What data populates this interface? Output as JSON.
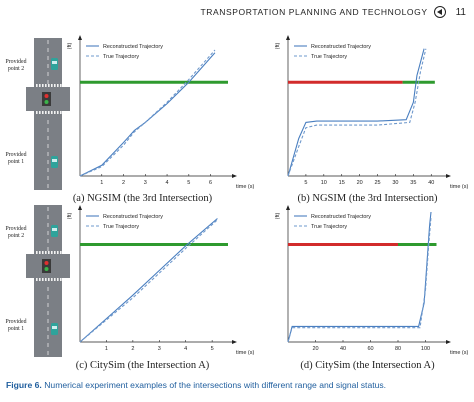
{
  "header": {
    "running_title": "TRANSPORTATION PLANNING AND TECHNOLOGY",
    "logo_icon": "journal-logo-icon",
    "page_number": "11"
  },
  "colors": {
    "reconstructed": "#4a7fc0",
    "true": "#6e98cc",
    "green_signal": "#2e9a2e",
    "red_signal": "#d22b2b",
    "caption_blue": "#1f5e9e"
  },
  "intersection_labels": {
    "point2": [
      "Provided",
      "point 2"
    ],
    "point1": [
      "Provided",
      "point 1"
    ]
  },
  "panels": [
    {
      "id": "a",
      "caption": "(a) NGSIM (the 3rd Intersection)",
      "chart_data": {
        "type": "line",
        "xlabel": "time (s)",
        "ylabel": "(ft)",
        "x_ticks": [
          1,
          2,
          3,
          4,
          5,
          6
        ],
        "xlim": [
          0,
          6.8
        ],
        "ylim": [
          0,
          100
        ],
        "series": [
          {
            "name": "Reconstructed Trajectory",
            "style": "solid",
            "x": [
              0,
              1,
              2,
              2.5,
              3,
              4,
              5,
              6.2
            ],
            "y": [
              0,
              8,
              25,
              34,
              40,
              54,
              70,
              92
            ]
          },
          {
            "name": "True Trajectory",
            "style": "dashed",
            "x": [
              0,
              1,
              2,
              2.5,
              3,
              4,
              5,
              6.2
            ],
            "y": [
              0,
              7,
              23,
              33,
              40,
              55,
              72,
              94
            ]
          }
        ],
        "signal": [
          {
            "color": "green",
            "x0": 0,
            "x1": 6.8,
            "y": 70
          }
        ]
      }
    },
    {
      "id": "b",
      "caption": "(b) NGSIM (the 3rd Intersection)",
      "chart_data": {
        "type": "line",
        "xlabel": "time (s)",
        "ylabel": "(ft)",
        "x_ticks": [
          5,
          10,
          15,
          20,
          25,
          30,
          35,
          40
        ],
        "xlim": [
          0,
          43
        ],
        "ylim": [
          0,
          100
        ],
        "series": [
          {
            "name": "Reconstructed Trajectory",
            "style": "solid",
            "x": [
              0,
              3,
              5,
              8,
              15,
              25,
              33,
              35,
              36,
              38
            ],
            "y": [
              0,
              28,
              40,
              41,
              41,
              41,
              42,
              55,
              75,
              95
            ]
          },
          {
            "name": "True Trajectory",
            "style": "dashed",
            "x": [
              0,
              3,
              5,
              8,
              15,
              25,
              34,
              35.5,
              37,
              38.5
            ],
            "y": [
              0,
              22,
              36,
              38,
              38,
              38,
              40,
              55,
              78,
              95
            ]
          }
        ],
        "signal": [
          {
            "color": "red",
            "x0": 0,
            "x1": 32,
            "y": 70
          },
          {
            "color": "green",
            "x0": 32,
            "x1": 41,
            "y": 70
          }
        ]
      }
    },
    {
      "id": "c",
      "caption": "(c) CitySim (the Intersection A)",
      "chart_data": {
        "type": "line",
        "xlabel": "time (s)",
        "ylabel": "(ft)",
        "x_ticks": [
          1,
          2,
          3,
          4,
          5
        ],
        "xlim": [
          0,
          5.6
        ],
        "ylim": [
          0,
          100
        ],
        "series": [
          {
            "name": "Reconstructed Trajectory",
            "style": "solid",
            "x": [
              0,
              1,
              2,
              3,
              4,
              5.2
            ],
            "y": [
              0,
              18,
              36,
              55,
              74,
              95
            ]
          },
          {
            "name": "True Trajectory",
            "style": "dashed",
            "x": [
              0,
              1,
              2,
              3,
              4,
              5.2
            ],
            "y": [
              0,
              17,
              34,
              53,
              72,
              94
            ]
          }
        ],
        "signal": [
          {
            "color": "green",
            "x0": 0,
            "x1": 5.6,
            "y": 75
          }
        ]
      }
    },
    {
      "id": "d",
      "caption": "(d) CitySim (the Intersection A)",
      "chart_data": {
        "type": "line",
        "xlabel": "time (s)",
        "ylabel": "(ft)",
        "x_ticks": [
          20,
          40,
          60,
          80,
          100
        ],
        "xlim": [
          0,
          112
        ],
        "ylim": [
          0,
          100
        ],
        "series": [
          {
            "name": "Reconstructed Trajectory",
            "style": "solid",
            "x": [
              0,
              3,
              20,
              60,
              95,
              99,
              101,
              103,
              104
            ],
            "y": [
              0,
              12,
              12,
              12,
              12,
              30,
              60,
              90,
              100
            ]
          },
          {
            "name": "True Trajectory",
            "style": "dashed",
            "x": [
              0,
              3,
              20,
              60,
              96,
              100,
              102,
              104
            ],
            "y": [
              0,
              11,
              11,
              11,
              11,
              40,
              70,
              96
            ]
          }
        ],
        "signal": [
          {
            "color": "red",
            "x0": 0,
            "x1": 80,
            "y": 75
          },
          {
            "color": "green",
            "x0": 80,
            "x1": 108,
            "y": 75
          }
        ]
      }
    }
  ],
  "figure_caption": {
    "label": "Figure 6.",
    "text": " Numerical experiment examples of the intersections with different range and signal status."
  }
}
